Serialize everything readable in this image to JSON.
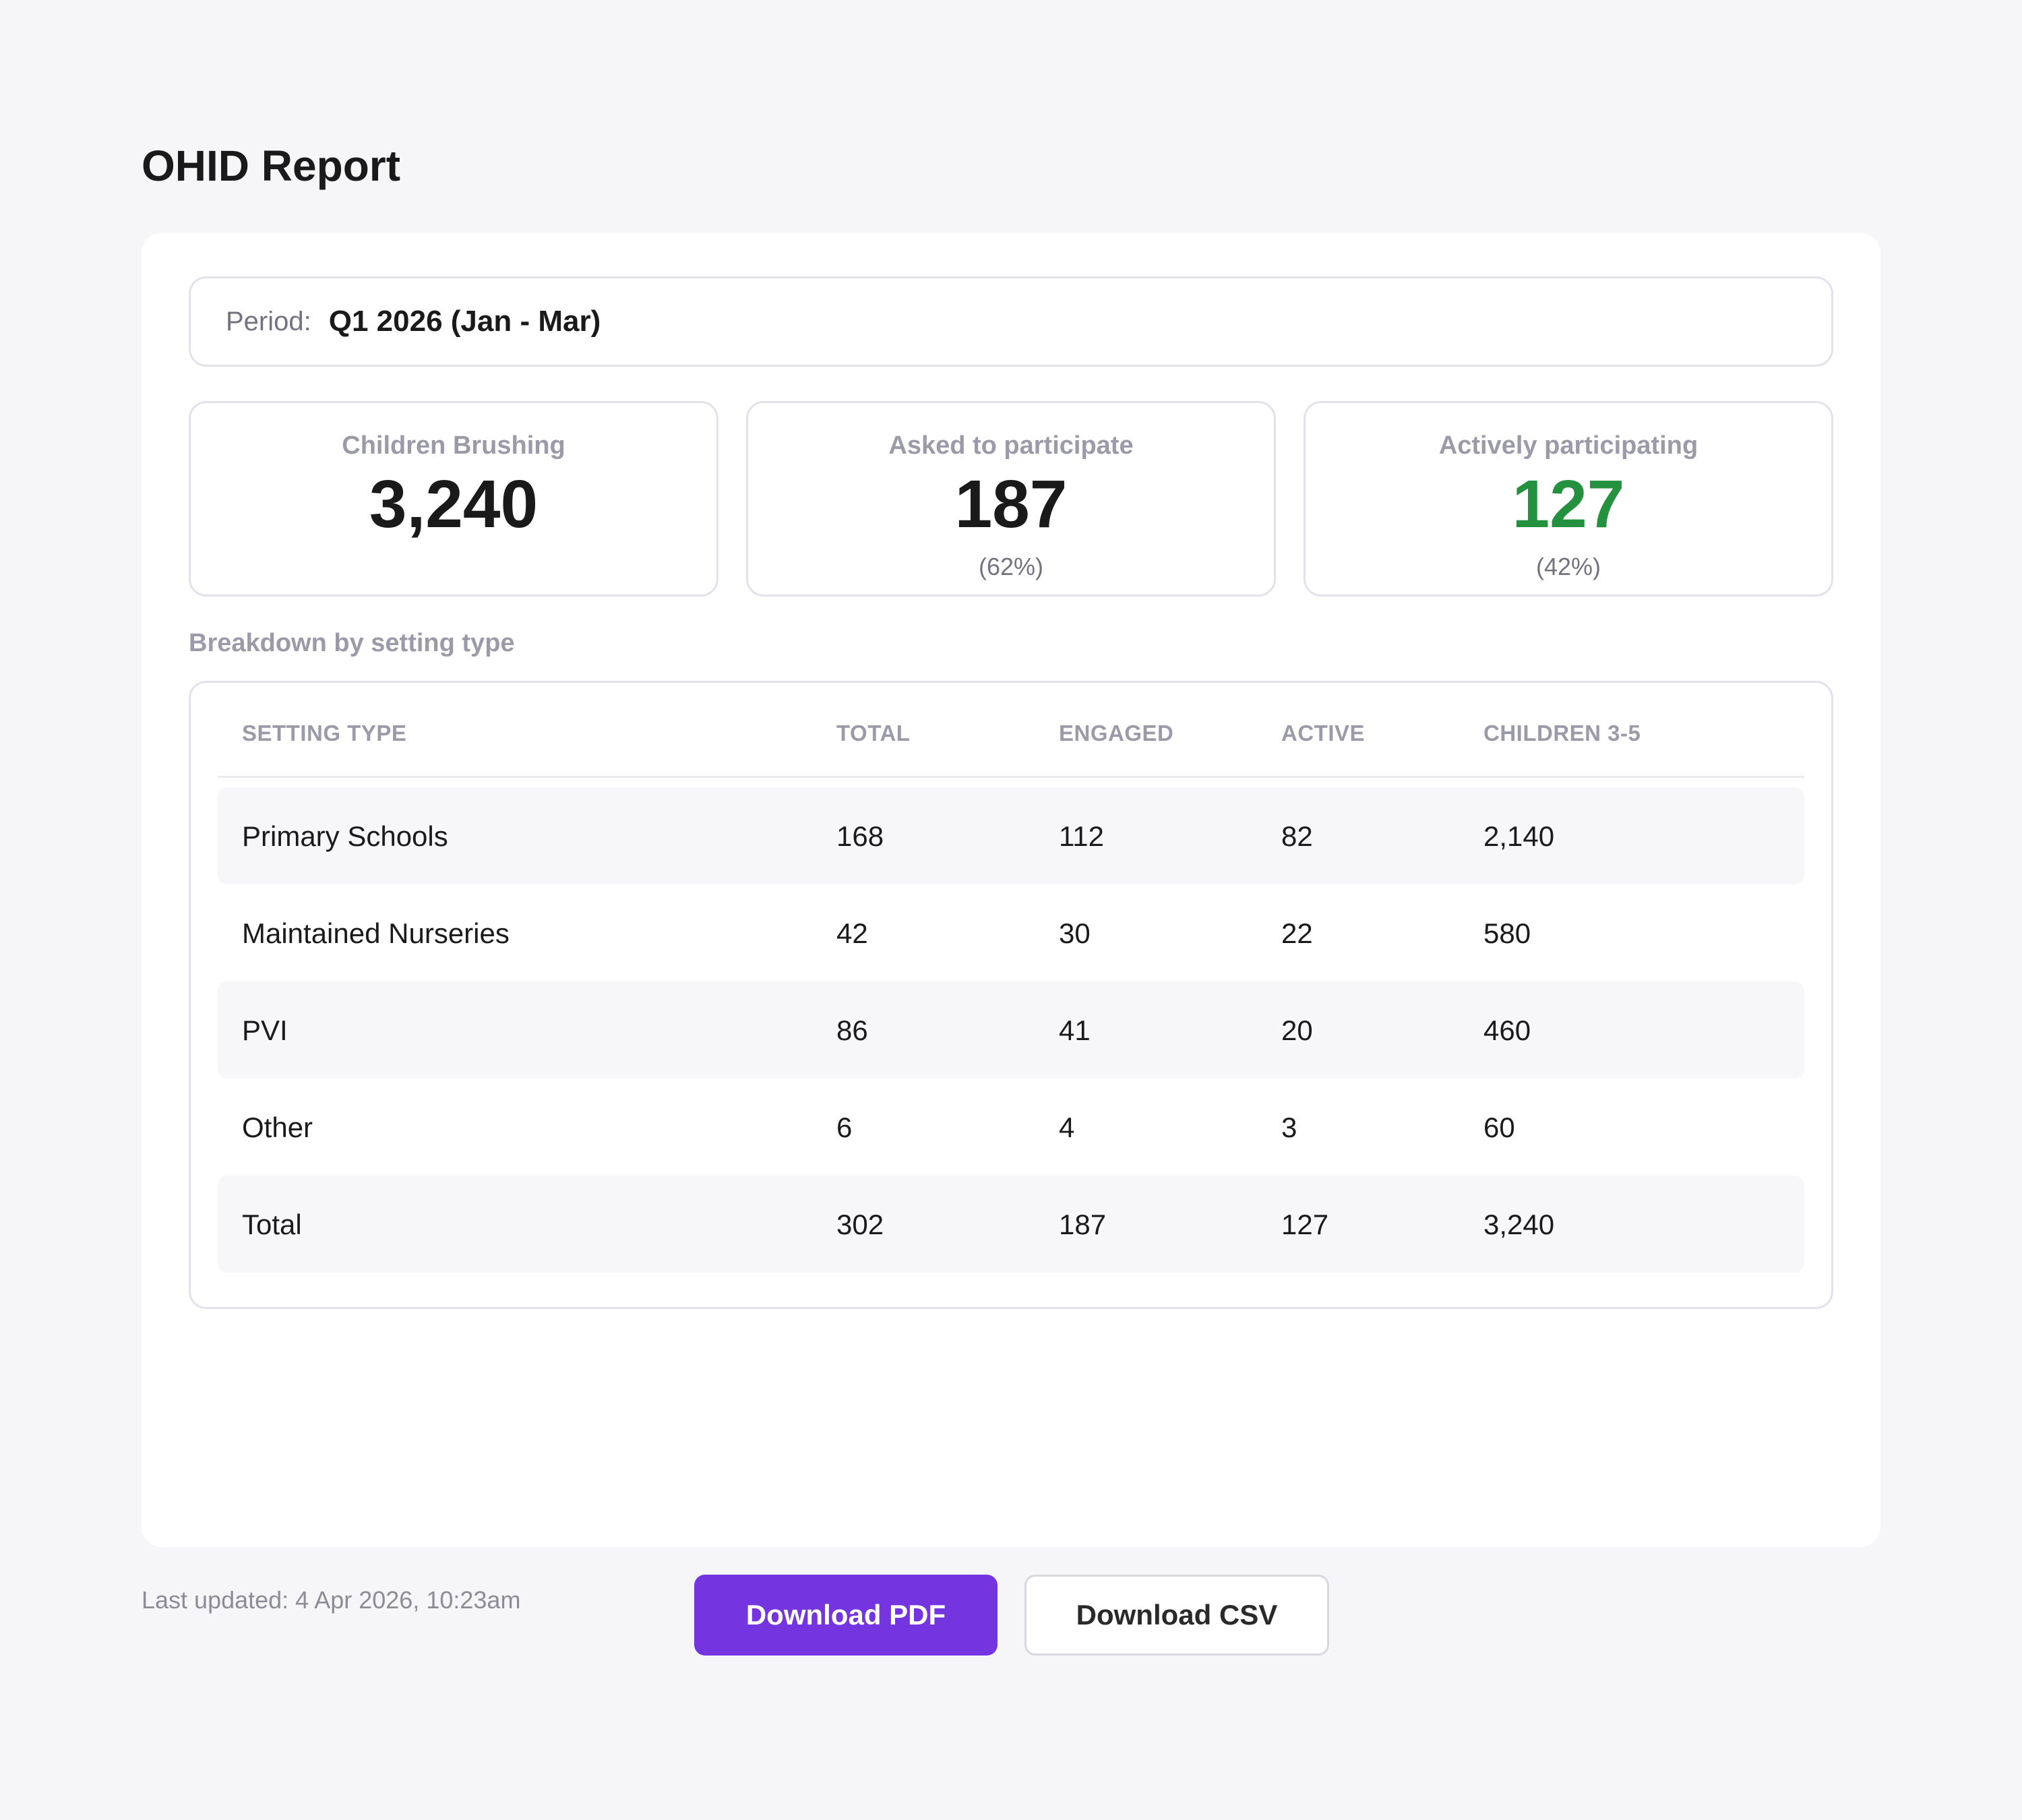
{
  "page": {
    "title": "OHID Report"
  },
  "period": {
    "label": "Period:",
    "value": "Q1 2026 (Jan - Mar)"
  },
  "kpis": [
    {
      "label": "Children Brushing",
      "value": "3,240",
      "sub": ""
    },
    {
      "label": "Asked to participate",
      "value": "187",
      "sub": "(62%)"
    },
    {
      "label": "Actively participating",
      "value": "127",
      "sub": "(42%)"
    }
  ],
  "colors": {
    "accent": "#7435e0",
    "positive": "#23913e"
  },
  "breakdown": {
    "title": "Breakdown by setting type",
    "headers": [
      "SETTING TYPE",
      "TOTAL",
      "ENGAGED",
      "ACTIVE",
      "CHILDREN 3-5"
    ],
    "rows": [
      [
        "Primary Schools",
        "168",
        "112",
        "82",
        "2,140"
      ],
      [
        "Maintained Nurseries",
        "42",
        "30",
        "22",
        "580"
      ],
      [
        "PVI",
        "86",
        "41",
        "20",
        "460"
      ],
      [
        "Other",
        "6",
        "4",
        "3",
        "60"
      ],
      [
        "Total",
        "302",
        "187",
        "127",
        "3,240"
      ]
    ]
  },
  "footer": {
    "last_updated": "Last updated: 4 Apr 2026, 10:23am",
    "download_pdf": "Download PDF",
    "download_csv": "Download CSV"
  }
}
